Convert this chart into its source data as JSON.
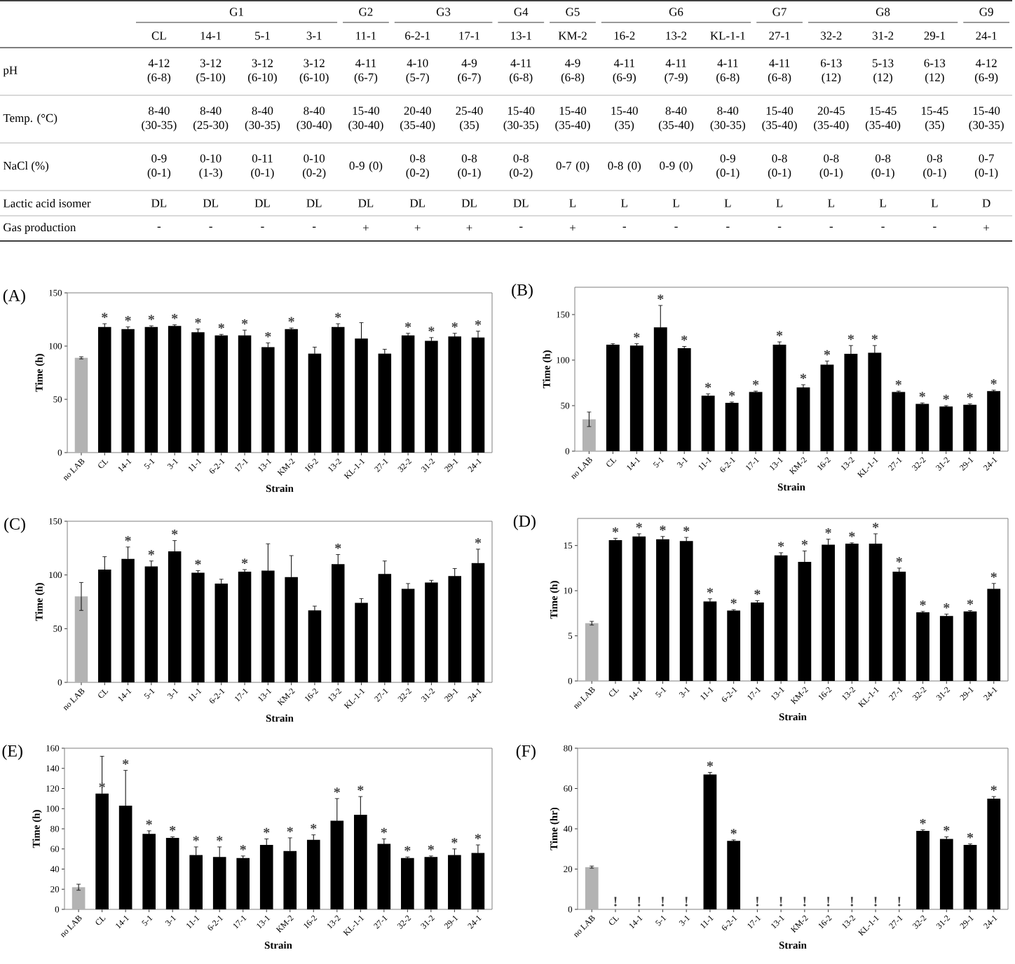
{
  "chart_data": [
    {
      "type": "other",
      "categories": [
        "CL",
        "14-1",
        "5-1",
        "3-1",
        "11-1",
        "6-2-1",
        "17-1",
        "13-1",
        "KM-2",
        "16-2",
        "13-2",
        "KL-1-1",
        "27-1",
        "32-2",
        "31-2",
        "29-1",
        "24-1"
      ],
      "y_categories": [
        "pH",
        "Temp. (°C)",
        "NaCl (%)",
        "Lactic acid isomer",
        "Gas production"
      ],
      "annotations": [
        {
          "text": "G1",
          "x": "CL"
        },
        {
          "text": "G2",
          "x": "11-1"
        },
        {
          "text": "G3",
          "x": "6-2-1"
        },
        {
          "text": "G4",
          "x": "13-1"
        },
        {
          "text": "G5",
          "x": "KM-2"
        },
        {
          "text": "G6",
          "x": "16-2"
        },
        {
          "text": "G7",
          "x": "27-1"
        },
        {
          "text": "G8",
          "x": "32-2"
        },
        {
          "text": "G9",
          "x": "24-1"
        },
        {
          "text": "4-12 (6-8)",
          "x": "CL",
          "y": "pH"
        },
        {
          "text": "3-12 (5-10)",
          "x": "14-1",
          "y": "pH"
        },
        {
          "text": "3-12 (6-10)",
          "x": "5-1",
          "y": "pH"
        },
        {
          "text": "3-12 (6-10)",
          "x": "3-1",
          "y": "pH"
        },
        {
          "text": "4-11 (6-7)",
          "x": "11-1",
          "y": "pH"
        },
        {
          "text": "4-10 (5-7)",
          "x": "6-2-1",
          "y": "pH"
        },
        {
          "text": "4-9 (6-7)",
          "x": "17-1",
          "y": "pH"
        },
        {
          "text": "4-11 (6-8)",
          "x": "13-1",
          "y": "pH"
        },
        {
          "text": "4-9 (6-8)",
          "x": "KM-2",
          "y": "pH"
        },
        {
          "text": "4-11 (6-9)",
          "x": "16-2",
          "y": "pH"
        },
        {
          "text": "4-11 (7-9)",
          "x": "13-2",
          "y": "pH"
        },
        {
          "text": "4-11 (6-8)",
          "x": "KL-1-1",
          "y": "pH"
        },
        {
          "text": "4-11 (6-8)",
          "x": "27-1",
          "y": "pH"
        },
        {
          "text": "6-13 (12)",
          "x": "32-2",
          "y": "pH"
        },
        {
          "text": "5-13 (12)",
          "x": "31-2",
          "y": "pH"
        },
        {
          "text": "6-13 (12)",
          "x": "29-1",
          "y": "pH"
        },
        {
          "text": "4-12 (6-9)",
          "x": "24-1",
          "y": "pH"
        },
        {
          "text": "8-40 (30-35)",
          "x": "CL",
          "y": "Temp. (°C)"
        },
        {
          "text": "8-40 (25-30)",
          "x": "14-1",
          "y": "Temp. (°C)"
        },
        {
          "text": "8-40 (30-35)",
          "x": "5-1",
          "y": "Temp. (°C)"
        },
        {
          "text": "8-40 (30-40)",
          "x": "3-1",
          "y": "Temp. (°C)"
        },
        {
          "text": "15-40 (30-40)",
          "x": "11-1",
          "y": "Temp. (°C)"
        },
        {
          "text": "20-40 (35-40)",
          "x": "6-2-1",
          "y": "Temp. (°C)"
        },
        {
          "text": "25-40 (35)",
          "x": "17-1",
          "y": "Temp. (°C)"
        },
        {
          "text": "15-40 (30-35)",
          "x": "13-1",
          "y": "Temp. (°C)"
        },
        {
          "text": "15-40 (35-40)",
          "x": "KM-2",
          "y": "Temp. (°C)"
        },
        {
          "text": "15-40 (35)",
          "x": "16-2",
          "y": "Temp. (°C)"
        },
        {
          "text": "8-40 (35-40)",
          "x": "13-2",
          "y": "Temp. (°C)"
        },
        {
          "text": "8-40 (30-35)",
          "x": "KL-1-1",
          "y": "Temp. (°C)"
        },
        {
          "text": "15-40 (35-40)",
          "x": "27-1",
          "y": "Temp. (°C)"
        },
        {
          "text": "20-45 (35-40)",
          "x": "32-2",
          "y": "Temp. (°C)"
        },
        {
          "text": "15-45 (35-40)",
          "x": "31-2",
          "y": "Temp. (°C)"
        },
        {
          "text": "15-45 (35)",
          "x": "29-1",
          "y": "Temp. (°C)"
        },
        {
          "text": "15-40 (30-35)",
          "x": "24-1",
          "y": "Temp. (°C)"
        },
        {
          "text": "0-9 (0-1)",
          "x": "CL",
          "y": "NaCl (%)"
        },
        {
          "text": "0-10 (1-3)",
          "x": "14-1",
          "y": "NaCl (%)"
        },
        {
          "text": "0-11 (0-1)",
          "x": "5-1",
          "y": "NaCl (%)"
        },
        {
          "text": "0-10 (0-2)",
          "x": "3-1",
          "y": "NaCl (%)"
        },
        {
          "text": "0-9 (0)",
          "x": "11-1",
          "y": "NaCl (%)"
        },
        {
          "text": "0-8 (0-2)",
          "x": "6-2-1",
          "y": "NaCl (%)"
        },
        {
          "text": "0-8 (0-1)",
          "x": "17-1",
          "y": "NaCl (%)"
        },
        {
          "text": "0-8 (0-2)",
          "x": "13-1",
          "y": "NaCl (%)"
        },
        {
          "text": "0-7 (0)",
          "x": "KM-2",
          "y": "NaCl (%)"
        },
        {
          "text": "0-8 (0)",
          "x": "16-2",
          "y": "NaCl (%)"
        },
        {
          "text": "0-9 (0)",
          "x": "13-2",
          "y": "NaCl (%)"
        },
        {
          "text": "0-9 (0-1)",
          "x": "KL-1-1",
          "y": "NaCl (%)"
        },
        {
          "text": "0-8 (0-1)",
          "x": "27-1",
          "y": "NaCl (%)"
        },
        {
          "text": "0-8 (0-1)",
          "x": "32-2",
          "y": "NaCl (%)"
        },
        {
          "text": "0-8 (0-1)",
          "x": "31-2",
          "y": "NaCl (%)"
        },
        {
          "text": "0-8 (0-1)",
          "x": "29-1",
          "y": "NaCl (%)"
        },
        {
          "text": "0-7 (0-1)",
          "x": "24-1",
          "y": "NaCl (%)"
        },
        {
          "text": "DL",
          "x": "CL",
          "y": "Lactic acid isomer"
        },
        {
          "text": "DL",
          "x": "14-1",
          "y": "Lactic acid isomer"
        },
        {
          "text": "DL",
          "x": "5-1",
          "y": "Lactic acid isomer"
        },
        {
          "text": "DL",
          "x": "3-1",
          "y": "Lactic acid isomer"
        },
        {
          "text": "DL",
          "x": "11-1",
          "y": "Lactic acid isomer"
        },
        {
          "text": "DL",
          "x": "6-2-1",
          "y": "Lactic acid isomer"
        },
        {
          "text": "DL",
          "x": "17-1",
          "y": "Lactic acid isomer"
        },
        {
          "text": "DL",
          "x": "13-1",
          "y": "Lactic acid isomer"
        },
        {
          "text": "L",
          "x": "KM-2",
          "y": "Lactic acid isomer"
        },
        {
          "text": "L",
          "x": "16-2",
          "y": "Lactic acid isomer"
        },
        {
          "text": "L",
          "x": "13-2",
          "y": "Lactic acid isomer"
        },
        {
          "text": "L",
          "x": "KL-1-1",
          "y": "Lactic acid isomer"
        },
        {
          "text": "L",
          "x": "27-1",
          "y": "Lactic acid isomer"
        },
        {
          "text": "L",
          "x": "32-2",
          "y": "Lactic acid isomer"
        },
        {
          "text": "L",
          "x": "31-2",
          "y": "Lactic acid isomer"
        },
        {
          "text": "L",
          "x": "29-1",
          "y": "Lactic acid isomer"
        },
        {
          "text": "D",
          "x": "24-1",
          "y": "Lactic acid isomer"
        },
        {
          "text": "-",
          "x": "CL",
          "y": "Gas production"
        },
        {
          "text": "-",
          "x": "14-1",
          "y": "Gas production"
        },
        {
          "text": "-",
          "x": "5-1",
          "y": "Gas production"
        },
        {
          "text": "-",
          "x": "3-1",
          "y": "Gas production"
        },
        {
          "text": "+",
          "x": "11-1",
          "y": "Gas production"
        },
        {
          "text": "+",
          "x": "6-2-1",
          "y": "Gas production"
        },
        {
          "text": "+",
          "x": "17-1",
          "y": "Gas production"
        },
        {
          "text": "-",
          "x": "13-1",
          "y": "Gas production"
        },
        {
          "text": "+",
          "x": "KM-2",
          "y": "Gas production"
        },
        {
          "text": "-",
          "x": "16-2",
          "y": "Gas production"
        },
        {
          "text": "-",
          "x": "13-2",
          "y": "Gas production"
        },
        {
          "text": "-",
          "x": "KL-1-1",
          "y": "Gas production"
        },
        {
          "text": "-",
          "x": "27-1",
          "y": "Gas production"
        },
        {
          "text": "-",
          "x": "32-2",
          "y": "Gas production"
        },
        {
          "text": "-",
          "x": "31-2",
          "y": "Gas production"
        },
        {
          "text": "-",
          "x": "29-1",
          "y": "Gas production"
        },
        {
          "text": "+",
          "x": "24-1",
          "y": "Gas production"
        }
      ]
    },
    {
      "type": "bar",
      "title": "(A)",
      "xlabel": "Strain",
      "ylabel": "Time (h)",
      "categories": [
        "no LAB",
        "CL",
        "14-1",
        "5-1",
        "3-1",
        "11-1",
        "6-2-1",
        "17-1",
        "13-1",
        "KM-2",
        "16-2",
        "13-2",
        "KL-1-1",
        "27-1",
        "32-2",
        "31-2",
        "29-1",
        "24-1"
      ],
      "values": [
        89,
        118,
        116,
        118,
        119,
        113,
        110,
        110,
        99,
        116,
        93,
        118,
        107,
        93,
        110,
        105,
        109,
        108
      ],
      "errors": [
        1,
        3,
        2,
        1,
        1,
        3,
        1,
        5,
        4,
        1,
        6,
        3,
        15,
        4,
        2,
        3,
        3,
        6
      ],
      "colors": [
        "#b3b3b3",
        "#000000",
        "#000000",
        "#000000",
        "#000000",
        "#000000",
        "#000000",
        "#000000",
        "#000000",
        "#000000",
        "#000000",
        "#000000",
        "#000000",
        "#000000",
        "#000000",
        "#000000",
        "#000000",
        "#000000"
      ],
      "ylim": [
        0,
        150
      ],
      "yticks": [
        0,
        50,
        100,
        150
      ],
      "annotations": [
        {
          "text": "*",
          "x": "CL",
          "y": 118
        },
        {
          "text": "*",
          "x": "14-1",
          "y": 116
        },
        {
          "text": "*",
          "x": "5-1",
          "y": 118
        },
        {
          "text": "*",
          "x": "3-1",
          "y": 119
        },
        {
          "text": "*",
          "x": "11-1",
          "y": 113
        },
        {
          "text": "*",
          "x": "6-2-1",
          "y": 110
        },
        {
          "text": "*",
          "x": "17-1",
          "y": 110
        },
        {
          "text": "*",
          "x": "13-1",
          "y": 99
        },
        {
          "text": "*",
          "x": "KM-2",
          "y": 116
        },
        {
          "text": "*",
          "x": "13-2",
          "y": 118
        },
        {
          "text": "*",
          "x": "32-2",
          "y": 110
        },
        {
          "text": "*",
          "x": "31-2",
          "y": 105
        },
        {
          "text": "*",
          "x": "29-1",
          "y": 109
        },
        {
          "text": "*",
          "x": "24-1",
          "y": 108
        }
      ]
    },
    {
      "type": "bar",
      "title": "(B)",
      "xlabel": "Strain",
      "ylabel": "Time (h)",
      "categories": [
        "no LAB",
        "CL",
        "14-1",
        "5-1",
        "3-1",
        "11-1",
        "6-2-1",
        "17-1",
        "13-1",
        "KM-2",
        "16-2",
        "13-2",
        "KL-1-1",
        "27-1",
        "32-2",
        "31-2",
        "29-1",
        "24-1"
      ],
      "values": [
        35,
        117,
        116,
        136,
        113,
        61,
        53,
        65,
        117,
        70,
        95,
        107,
        108,
        65,
        52,
        49,
        51,
        66
      ],
      "errors": [
        8,
        1,
        2,
        24,
        2,
        2,
        1,
        1,
        3,
        3,
        4,
        9,
        8,
        1,
        1,
        1,
        1,
        1
      ],
      "colors": [
        "#b3b3b3",
        "#000000",
        "#000000",
        "#000000",
        "#000000",
        "#000000",
        "#000000",
        "#000000",
        "#000000",
        "#000000",
        "#000000",
        "#000000",
        "#000000",
        "#000000",
        "#000000",
        "#000000",
        "#000000",
        "#000000"
      ],
      "ylim": [
        0,
        180
      ],
      "yticks": [
        0,
        50,
        100,
        150
      ],
      "annotations": [
        {
          "text": "*",
          "x": "14-1",
          "y": 116
        },
        {
          "text": "*",
          "x": "5-1",
          "y": 136
        },
        {
          "text": "*",
          "x": "3-1",
          "y": 113
        },
        {
          "text": "*",
          "x": "11-1",
          "y": 61
        },
        {
          "text": "*",
          "x": "6-2-1",
          "y": 53
        },
        {
          "text": "*",
          "x": "17-1",
          "y": 65
        },
        {
          "text": "*",
          "x": "13-1",
          "y": 117
        },
        {
          "text": "*",
          "x": "KM-2",
          "y": 70
        },
        {
          "text": "*",
          "x": "16-2",
          "y": 95
        },
        {
          "text": "*",
          "x": "13-2",
          "y": 107
        },
        {
          "text": "*",
          "x": "KL-1-1",
          "y": 108
        },
        {
          "text": "*",
          "x": "27-1",
          "y": 65
        },
        {
          "text": "*",
          "x": "32-2",
          "y": 52
        },
        {
          "text": "*",
          "x": "31-2",
          "y": 49
        },
        {
          "text": "*",
          "x": "29-1",
          "y": 51
        },
        {
          "text": "*",
          "x": "24-1",
          "y": 66
        }
      ]
    },
    {
      "type": "bar",
      "title": "(C)",
      "xlabel": "Strain",
      "ylabel": "Time (h)",
      "categories": [
        "no LAB",
        "CL",
        "14-1",
        "5-1",
        "3-1",
        "11-1",
        "6-2-1",
        "17-1",
        "13-1",
        "KM-2",
        "16-2",
        "13-2",
        "KL-1-1",
        "27-1",
        "32-2",
        "31-2",
        "29-1",
        "24-1"
      ],
      "values": [
        80,
        105,
        115,
        108,
        122,
        102,
        92,
        103,
        104,
        98,
        67,
        110,
        74,
        101,
        87,
        93,
        99,
        111
      ],
      "errors": [
        13,
        12,
        11,
        5,
        10,
        2,
        4,
        2,
        25,
        20,
        4,
        9,
        4,
        12,
        5,
        2,
        7,
        13
      ],
      "colors": [
        "#b3b3b3",
        "#000000",
        "#000000",
        "#000000",
        "#000000",
        "#000000",
        "#000000",
        "#000000",
        "#000000",
        "#000000",
        "#000000",
        "#000000",
        "#000000",
        "#000000",
        "#000000",
        "#000000",
        "#000000",
        "#000000"
      ],
      "ylim": [
        0,
        150
      ],
      "yticks": [
        0,
        50,
        100,
        150
      ],
      "annotations": [
        {
          "text": "*",
          "x": "14-1",
          "y": 115
        },
        {
          "text": "*",
          "x": "5-1",
          "y": 108
        },
        {
          "text": "*",
          "x": "3-1",
          "y": 122
        },
        {
          "text": "*",
          "x": "11-1",
          "y": 102
        },
        {
          "text": "*",
          "x": "17-1",
          "y": 103
        },
        {
          "text": "*",
          "x": "13-2",
          "y": 110
        },
        {
          "text": "*",
          "x": "24-1",
          "y": 111
        }
      ]
    },
    {
      "type": "bar",
      "title": "(D)",
      "xlabel": "Strain",
      "ylabel": "Time (h)",
      "categories": [
        "no LAB",
        "CL",
        "14-1",
        "5-1",
        "3-1",
        "11-1",
        "6-2-1",
        "17-1",
        "13-1",
        "KM-2",
        "16-2",
        "13-2",
        "KL-1-1",
        "27-1",
        "32-2",
        "31-2",
        "29-1",
        "24-1"
      ],
      "values": [
        6.4,
        15.6,
        16.0,
        15.7,
        15.5,
        8.8,
        7.8,
        8.7,
        13.9,
        13.2,
        15.1,
        15.2,
        15.2,
        12.1,
        7.6,
        7.2,
        7.7,
        10.2
      ],
      "errors": [
        0.2,
        0.2,
        0.3,
        0.3,
        0.4,
        0.3,
        0.1,
        0.2,
        0.3,
        1.2,
        0.6,
        0.1,
        1.1,
        0.4,
        0.1,
        0.2,
        0.1,
        0.6
      ],
      "colors": [
        "#b3b3b3",
        "#000000",
        "#000000",
        "#000000",
        "#000000",
        "#000000",
        "#000000",
        "#000000",
        "#000000",
        "#000000",
        "#000000",
        "#000000",
        "#000000",
        "#000000",
        "#000000",
        "#000000",
        "#000000",
        "#000000"
      ],
      "ylim": [
        0,
        18
      ],
      "yticks": [
        0,
        5,
        10,
        15
      ],
      "annotations": [
        {
          "text": "*",
          "x": "CL",
          "y": 15.6
        },
        {
          "text": "*",
          "x": "14-1",
          "y": 16.0
        },
        {
          "text": "*",
          "x": "5-1",
          "y": 15.7
        },
        {
          "text": "*",
          "x": "3-1",
          "y": 15.5
        },
        {
          "text": "*",
          "x": "11-1",
          "y": 8.8
        },
        {
          "text": "*",
          "x": "6-2-1",
          "y": 7.8
        },
        {
          "text": "*",
          "x": "17-1",
          "y": 8.7
        },
        {
          "text": "*",
          "x": "13-1",
          "y": 13.9
        },
        {
          "text": "*",
          "x": "KM-2",
          "y": 13.2
        },
        {
          "text": "*",
          "x": "16-2",
          "y": 15.1
        },
        {
          "text": "*",
          "x": "13-2",
          "y": 15.2
        },
        {
          "text": "*",
          "x": "KL-1-1",
          "y": 15.2
        },
        {
          "text": "*",
          "x": "27-1",
          "y": 12.1
        },
        {
          "text": "*",
          "x": "32-2",
          "y": 7.6
        },
        {
          "text": "*",
          "x": "31-2",
          "y": 7.2
        },
        {
          "text": "*",
          "x": "29-1",
          "y": 7.7
        },
        {
          "text": "*",
          "x": "24-1",
          "y": 10.2
        }
      ]
    },
    {
      "type": "bar",
      "title": "(E)",
      "xlabel": "Strain",
      "ylabel": "Time (h)",
      "categories": [
        "no LAB",
        "CL",
        "14-1",
        "5-1",
        "3-1",
        "11-1",
        "6-2-1",
        "17-1",
        "13-1",
        "KM-2",
        "16-2",
        "13-2",
        "KL-1-1",
        "27-1",
        "32-2",
        "31-2",
        "29-1",
        "24-1"
      ],
      "values": [
        22,
        115,
        103,
        75,
        71,
        54,
        52,
        51,
        64,
        58,
        69,
        88,
        94,
        65,
        51,
        52,
        54,
        56
      ],
      "errors": [
        3,
        37,
        35,
        3,
        1,
        8,
        10,
        2,
        6,
        13,
        5,
        22,
        18,
        5,
        1,
        1,
        6,
        8
      ],
      "colors": [
        "#b3b3b3",
        "#000000",
        "#000000",
        "#000000",
        "#000000",
        "#000000",
        "#000000",
        "#000000",
        "#000000",
        "#000000",
        "#000000",
        "#000000",
        "#000000",
        "#000000",
        "#000000",
        "#000000",
        "#000000",
        "#000000"
      ],
      "ylim": [
        0,
        160
      ],
      "yticks": [
        0,
        20,
        40,
        60,
        80,
        100,
        120,
        140,
        160
      ],
      "annotations": [
        {
          "text": "*",
          "x": "CL",
          "y": 115
        },
        {
          "text": "*",
          "x": "14-1",
          "y": 103
        },
        {
          "text": "*",
          "x": "5-1",
          "y": 75
        },
        {
          "text": "*",
          "x": "3-1",
          "y": 71
        },
        {
          "text": "*",
          "x": "11-1",
          "y": 54
        },
        {
          "text": "*",
          "x": "6-2-1",
          "y": 52
        },
        {
          "text": "*",
          "x": "17-1",
          "y": 51
        },
        {
          "text": "*",
          "x": "13-1",
          "y": 64
        },
        {
          "text": "*",
          "x": "KM-2",
          "y": 58
        },
        {
          "text": "*",
          "x": "16-2",
          "y": 69
        },
        {
          "text": "*",
          "x": "13-2",
          "y": 88
        },
        {
          "text": "*",
          "x": "KL-1-1",
          "y": 94
        },
        {
          "text": "*",
          "x": "27-1",
          "y": 65
        },
        {
          "text": "*",
          "x": "32-2",
          "y": 51
        },
        {
          "text": "*",
          "x": "31-2",
          "y": 52
        },
        {
          "text": "*",
          "x": "29-1",
          "y": 54
        },
        {
          "text": "*",
          "x": "24-1",
          "y": 56
        }
      ]
    },
    {
      "type": "bar",
      "title": "(F)",
      "xlabel": "Strain",
      "ylabel": "Time (hr)",
      "categories": [
        "no LAB",
        "CL",
        "14-1",
        "5-1",
        "3-1",
        "11-1",
        "6-2-1",
        "17-1",
        "13-1",
        "KM-2",
        "16-2",
        "13-2",
        "KL-1-1",
        "27-1",
        "32-2",
        "31-2",
        "29-1",
        "24-1"
      ],
      "values": [
        21,
        null,
        null,
        null,
        null,
        67,
        34,
        null,
        null,
        null,
        null,
        null,
        null,
        null,
        39,
        35,
        32,
        55
      ],
      "errors": [
        0.5,
        null,
        null,
        null,
        null,
        1,
        0.5,
        null,
        null,
        null,
        null,
        null,
        null,
        null,
        0.5,
        1,
        0.5,
        1
      ],
      "colors": [
        "#b3b3b3",
        "#000000",
        "#000000",
        "#000000",
        "#000000",
        "#000000",
        "#000000",
        "#000000",
        "#000000",
        "#000000",
        "#000000",
        "#000000",
        "#000000",
        "#000000",
        "#000000",
        "#000000",
        "#000000",
        "#000000"
      ],
      "ylim": [
        0,
        80
      ],
      "yticks": [
        0,
        20,
        40,
        60,
        80
      ],
      "annotations": [
        "!",
        "!",
        "!",
        "!",
        {
          "text": "*",
          "x": "11-1",
          "y": 67
        },
        {
          "text": "*",
          "x": "6-2-1",
          "y": 34
        },
        "!",
        "!",
        "!",
        "!",
        "!",
        "!",
        "!",
        {
          "text": "*",
          "x": "32-2",
          "y": 39
        },
        {
          "text": "*",
          "x": "31-2",
          "y": 35
        },
        {
          "text": "*",
          "x": "29-1",
          "y": 32
        },
        {
          "text": "*",
          "x": "24-1",
          "y": 55
        }
      ]
    }
  ]
}
